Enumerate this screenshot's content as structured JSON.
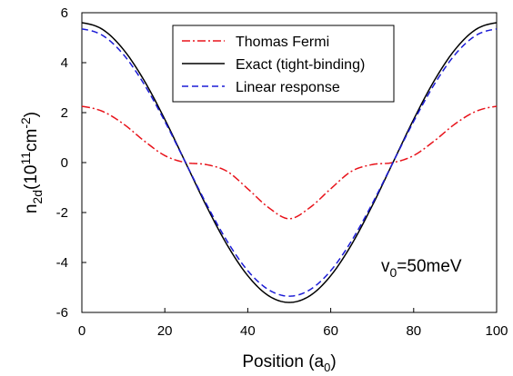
{
  "chart_data": {
    "type": "line",
    "xlabel": {
      "main": "Position (a",
      "sub": "0",
      "end": ")"
    },
    "ylabel": {
      "a": "n",
      "a_sub": "2d",
      "b": "(10",
      "b_sup": "11",
      "c": "cm",
      "c_sup": "-2",
      "d": ")"
    },
    "annotation": {
      "main": "v",
      "sub": "0",
      "rest": "=50meV"
    },
    "xlim": [
      0,
      100
    ],
    "ylim": [
      -6,
      6
    ],
    "xticks": [
      0,
      20,
      40,
      60,
      80,
      100
    ],
    "yticks": [
      -6,
      -4,
      -2,
      0,
      2,
      4,
      6
    ],
    "grid": false,
    "legend_position": "top-center",
    "series": [
      {
        "name": "Thomas Fermi",
        "color": "#e8131b",
        "dash": "dash-dot",
        "x": [
          0,
          5,
          10,
          15,
          20,
          25,
          30,
          35,
          40,
          45,
          50,
          55,
          60,
          65,
          70,
          75,
          80,
          85,
          90,
          95,
          100
        ],
        "y": [
          2.25,
          2.05,
          1.55,
          0.87,
          0.28,
          0.0,
          -0.08,
          -0.35,
          -1.05,
          -1.8,
          -2.25,
          -1.8,
          -1.05,
          -0.35,
          -0.08,
          0.0,
          0.28,
          0.87,
          1.55,
          2.05,
          2.25
        ]
      },
      {
        "name": "Exact (tight-binding)",
        "color": "#000000",
        "dash": "solid",
        "x": [
          0,
          5,
          10,
          15,
          20,
          25,
          30,
          35,
          40,
          45,
          50,
          55,
          60,
          65,
          70,
          75,
          80,
          85,
          90,
          95,
          100
        ],
        "y": [
          5.6,
          5.33,
          4.53,
          3.29,
          1.73,
          0.0,
          -1.73,
          -3.29,
          -4.53,
          -5.33,
          -5.6,
          -5.33,
          -4.53,
          -3.29,
          -1.73,
          0.0,
          1.73,
          3.29,
          4.53,
          5.33,
          5.6
        ]
      },
      {
        "name": "Linear response",
        "color": "#1b1bd6",
        "dash": "dashed",
        "x": [
          0,
          5,
          10,
          15,
          20,
          25,
          30,
          35,
          40,
          45,
          50,
          55,
          60,
          65,
          70,
          75,
          80,
          85,
          90,
          95,
          100
        ],
        "y": [
          5.35,
          5.09,
          4.33,
          3.14,
          1.65,
          0.0,
          -1.65,
          -3.14,
          -4.33,
          -5.09,
          -5.35,
          -5.09,
          -4.33,
          -3.14,
          -1.65,
          0.0,
          1.65,
          3.14,
          4.33,
          5.09,
          5.35
        ]
      }
    ]
  }
}
